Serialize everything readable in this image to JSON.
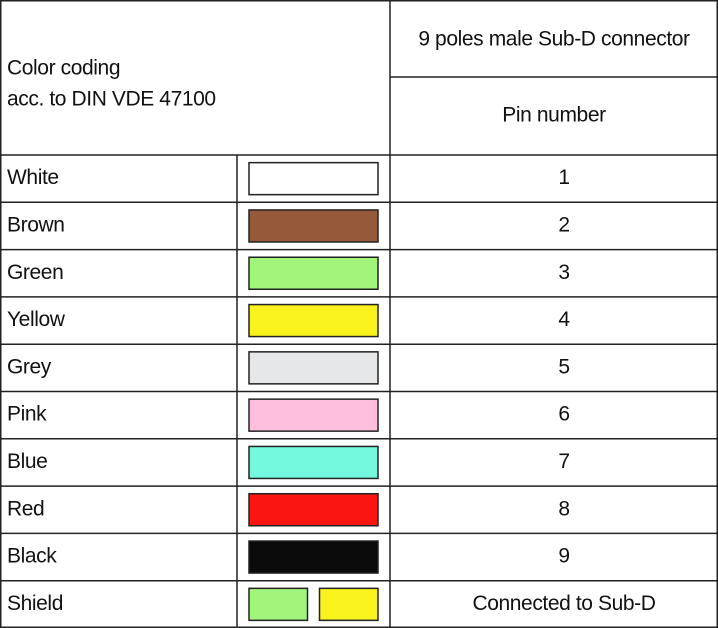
{
  "header": {
    "left_lines": [
      "Color coding",
      "acc. to DIN VDE 47100"
    ],
    "connector": "9 poles male Sub-D connector",
    "pin_label": "Pin number"
  },
  "rows": [
    {
      "name": "White",
      "colors": [
        "#ffffff"
      ],
      "pin": 1
    },
    {
      "name": "Brown",
      "colors": [
        "#96593a"
      ],
      "pin": 2
    },
    {
      "name": "Green",
      "colors": [
        "#a1f57a"
      ],
      "pin": 3
    },
    {
      "name": "Yellow",
      "colors": [
        "#f9f21c"
      ],
      "pin": 4
    },
    {
      "name": "Grey",
      "colors": [
        "#e5e7e8"
      ],
      "pin": 5
    },
    {
      "name": "Pink",
      "colors": [
        "#fdbfdc"
      ],
      "pin": 6
    },
    {
      "name": "Blue",
      "colors": [
        "#73f8dd"
      ],
      "pin": 7
    },
    {
      "name": "Red",
      "colors": [
        "#fb1510"
      ],
      "pin": 8
    },
    {
      "name": "Black",
      "colors": [
        "#0a0a0a"
      ],
      "pin": 9
    },
    {
      "name": "Shield",
      "colors": [
        "#a1f57a",
        "#f9f21c"
      ],
      "pin": "Connected to Sub-D"
    }
  ]
}
